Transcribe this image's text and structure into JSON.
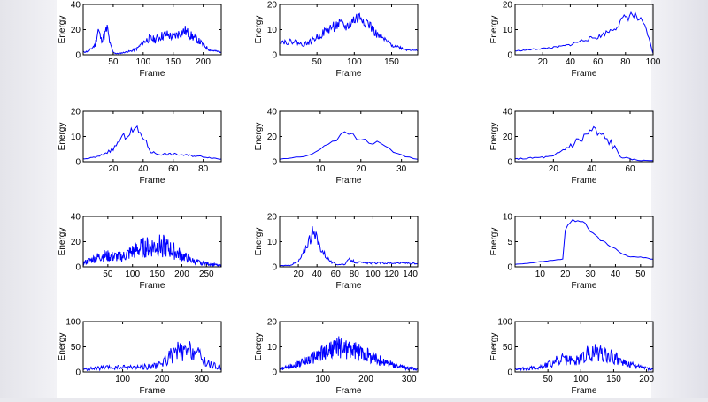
{
  "figure": {
    "line_color": "#0000ff",
    "background": "#ffffff"
  },
  "chart_data": [
    {
      "type": "line",
      "xlabel": "Frame",
      "ylabel": "Energy",
      "xlim": [
        0,
        230
      ],
      "ylim": [
        0,
        40
      ],
      "xticks": [
        50,
        100,
        150,
        200
      ],
      "yticks": [
        0,
        20,
        40
      ],
      "x": [
        0,
        10,
        20,
        25,
        30,
        35,
        40,
        45,
        50,
        55,
        60,
        70,
        80,
        90,
        100,
        110,
        120,
        130,
        140,
        150,
        160,
        170,
        180,
        190,
        200,
        210,
        220,
        230
      ],
      "y": [
        2,
        3,
        8,
        20,
        12,
        15,
        21,
        8,
        2,
        1,
        1,
        2,
        3,
        5,
        10,
        13,
        12,
        15,
        16,
        14,
        17,
        19,
        15,
        12,
        8,
        4,
        3,
        2
      ],
      "noise": 0.25,
      "seed": 11
    },
    {
      "type": "line",
      "xlabel": "Frame",
      "ylabel": "Energy",
      "xlim": [
        0,
        185
      ],
      "ylim": [
        0,
        20
      ],
      "xticks": [
        50,
        100,
        150
      ],
      "yticks": [
        0,
        10,
        20
      ],
      "x": [
        0,
        10,
        20,
        30,
        40,
        50,
        60,
        70,
        80,
        90,
        100,
        110,
        120,
        130,
        140,
        150,
        160,
        170,
        180,
        185
      ],
      "y": [
        5.5,
        5,
        5.5,
        4,
        5,
        7,
        9,
        11,
        12,
        11,
        14,
        15,
        12,
        8,
        6,
        4,
        3,
        2,
        2,
        1.5
      ],
      "noise": 0.2,
      "seed": 22
    },
    {
      "type": "line",
      "xlabel": "Frame",
      "ylabel": "Energy",
      "xlim": [
        0,
        100
      ],
      "ylim": [
        0,
        20
      ],
      "xticks": [
        20,
        40,
        60,
        80,
        100
      ],
      "yticks": [
        0,
        10,
        20
      ],
      "x": [
        0,
        10,
        20,
        30,
        40,
        50,
        60,
        70,
        75,
        80,
        85,
        90,
        95,
        100
      ],
      "y": [
        1.5,
        2,
        2.5,
        3,
        4,
        6,
        7,
        10,
        12,
        15,
        16,
        14,
        10,
        0.5
      ],
      "noise": 0.12,
      "seed": 33
    },
    {
      "type": "line",
      "xlabel": "Frame",
      "ylabel": "Energy",
      "xlim": [
        0,
        92
      ],
      "ylim": [
        0,
        20
      ],
      "xticks": [
        20,
        40,
        60,
        80
      ],
      "yticks": [
        0,
        10,
        20
      ],
      "x": [
        0,
        10,
        20,
        25,
        30,
        35,
        40,
        45,
        50,
        60,
        70,
        80,
        92
      ],
      "y": [
        1,
        2,
        5,
        9,
        11,
        13,
        10,
        4,
        3,
        3,
        2.5,
        2,
        1
      ],
      "noise": 0.15,
      "seed": 44
    },
    {
      "type": "line",
      "xlabel": "Frame",
      "ylabel": "Energy",
      "xlim": [
        0,
        34
      ],
      "ylim": [
        0,
        40
      ],
      "xticks": [
        10,
        20,
        30
      ],
      "yticks": [
        0,
        20,
        40
      ],
      "x": [
        0,
        3,
        6,
        9,
        12,
        15,
        17,
        19,
        22,
        25,
        28,
        31,
        34
      ],
      "y": [
        2,
        3,
        4,
        8,
        15,
        20,
        23,
        18,
        16,
        14,
        8,
        4,
        2
      ],
      "noise": 0.12,
      "seed": 55
    },
    {
      "type": "line",
      "xlabel": "Frame",
      "ylabel": "Energy",
      "xlim": [
        0,
        72
      ],
      "ylim": [
        0,
        40
      ],
      "xticks": [
        20,
        40,
        60
      ],
      "yticks": [
        0,
        20,
        40
      ],
      "x": [
        0,
        10,
        20,
        25,
        30,
        35,
        40,
        45,
        50,
        55,
        60,
        65,
        72
      ],
      "y": [
        2,
        3,
        4,
        9,
        14,
        18,
        25,
        20,
        15,
        4,
        2,
        1,
        1
      ],
      "noise": 0.25,
      "seed": 66
    },
    {
      "type": "line",
      "xlabel": "Frame",
      "ylabel": "Energy",
      "xlim": [
        0,
        280
      ],
      "ylim": [
        0,
        40
      ],
      "xticks": [
        50,
        100,
        150,
        200,
        250
      ],
      "yticks": [
        0,
        20,
        40
      ],
      "x": [
        0,
        20,
        40,
        60,
        80,
        100,
        120,
        140,
        160,
        180,
        200,
        220,
        240,
        260,
        280
      ],
      "y": [
        3,
        6,
        9,
        8,
        8,
        12,
        15,
        16,
        17,
        13,
        9,
        5,
        3,
        2,
        1
      ],
      "noise": 0.55,
      "seed": 77
    },
    {
      "type": "line",
      "xlabel": "Frame",
      "ylabel": "Energy",
      "xlim": [
        0,
        148
      ],
      "ylim": [
        0,
        20
      ],
      "xticks": [
        20,
        40,
        60,
        80,
        100,
        120,
        140
      ],
      "yticks": [
        0,
        10,
        20
      ],
      "x": [
        0,
        10,
        20,
        25,
        30,
        35,
        40,
        45,
        50,
        55,
        60,
        70,
        75,
        80,
        90,
        100,
        120,
        140,
        148
      ],
      "y": [
        0.5,
        0.5,
        2,
        5,
        10,
        13,
        11,
        7,
        4,
        2,
        1,
        1,
        3,
        2,
        1.5,
        1.5,
        1.5,
        1.5,
        1
      ],
      "noise": 0.25,
      "seed": 88
    },
    {
      "type": "line",
      "xlabel": "Frame",
      "ylabel": "Energy",
      "xlim": [
        0,
        55
      ],
      "ylim": [
        0,
        10
      ],
      "xticks": [
        10,
        20,
        30,
        40,
        50
      ],
      "yticks": [
        0,
        5,
        10
      ],
      "x": [
        0,
        5,
        10,
        15,
        19,
        20,
        22,
        25,
        28,
        30,
        35,
        40,
        45,
        50,
        55
      ],
      "y": [
        0.5,
        0.7,
        1,
        1.3,
        1.5,
        7,
        9,
        9,
        8.5,
        7,
        5,
        3.5,
        2,
        2,
        1.5
      ],
      "noise": 0.05,
      "seed": 99
    },
    {
      "type": "line",
      "xlabel": "Frame",
      "ylabel": "Energy",
      "xlim": [
        0,
        350
      ],
      "ylim": [
        0,
        100
      ],
      "xticks": [
        100,
        200,
        300
      ],
      "yticks": [
        0,
        50,
        100
      ],
      "x": [
        0,
        50,
        100,
        150,
        190,
        210,
        240,
        260,
        280,
        300,
        320,
        350
      ],
      "y": [
        5,
        8,
        9,
        10,
        12,
        25,
        40,
        35,
        45,
        25,
        15,
        8
      ],
      "noise": 0.55,
      "seed": 111
    },
    {
      "type": "line",
      "xlabel": "Frame",
      "ylabel": "Energy",
      "xlim": [
        0,
        320
      ],
      "ylim": [
        0,
        20
      ],
      "xticks": [
        100,
        200,
        300
      ],
      "yticks": [
        0,
        10,
        20
      ],
      "x": [
        0,
        40,
        80,
        120,
        140,
        160,
        200,
        240,
        280,
        320
      ],
      "y": [
        1,
        3,
        6,
        9,
        10,
        9,
        7,
        4,
        2,
        1
      ],
      "noise": 0.45,
      "seed": 122
    },
    {
      "type": "line",
      "xlabel": "Frame",
      "ylabel": "Energy",
      "xlim": [
        0,
        210
      ],
      "ylim": [
        0,
        100
      ],
      "xticks": [
        50,
        100,
        150,
        200
      ],
      "yticks": [
        0,
        50,
        100
      ],
      "x": [
        0,
        30,
        50,
        70,
        90,
        110,
        130,
        150,
        170,
        190,
        210
      ],
      "y": [
        5,
        8,
        15,
        25,
        20,
        35,
        40,
        30,
        15,
        10,
        5
      ],
      "noise": 0.5,
      "seed": 133
    }
  ]
}
